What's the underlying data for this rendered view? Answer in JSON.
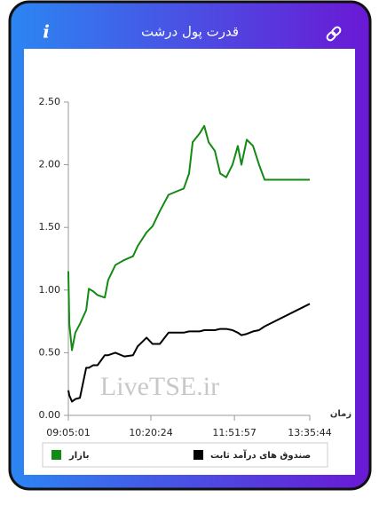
{
  "header": {
    "title": "قدرت پول درشت",
    "info": "i"
  },
  "chart_data": {
    "type": "line",
    "x_label": "زمان",
    "watermark": "LiveTSE.ir",
    "x": [
      0,
      0.4,
      1.5,
      2.9,
      4.8,
      7.4,
      8.5,
      10.3,
      12.1,
      15.1,
      16.5,
      19.5,
      23.2,
      26.8,
      28.7,
      32.4,
      34.9,
      37.9,
      41.5,
      45.2,
      47.8,
      50,
      51.5,
      54.4,
      56.3,
      58.1,
      60.7,
      62.9,
      65.4,
      68,
      70.2,
      71.7,
      73.9,
      76.5,
      79,
      81.3,
      100
    ],
    "series": [
      {
        "name": "صندوق های درآمد ثابت",
        "color": "#000000",
        "values": [
          0.2,
          0.16,
          0.11,
          0.13,
          0.14,
          0.38,
          0.38,
          0.4,
          0.4,
          0.48,
          0.48,
          0.5,
          0.47,
          0.48,
          0.55,
          0.62,
          0.57,
          0.57,
          0.66,
          0.66,
          0.66,
          0.67,
          0.67,
          0.67,
          0.68,
          0.68,
          0.68,
          0.69,
          0.69,
          0.68,
          0.66,
          0.64,
          0.65,
          0.67,
          0.68,
          0.71,
          0.89
        ]
      },
      {
        "name": "بازار",
        "color": "#138a13",
        "values": [
          1.15,
          0.73,
          0.52,
          0.66,
          0.73,
          0.84,
          1.01,
          0.99,
          0.96,
          0.94,
          1.08,
          1.2,
          1.24,
          1.27,
          1.35,
          1.46,
          1.51,
          1.63,
          1.76,
          1.79,
          1.81,
          1.93,
          2.18,
          2.25,
          2.31,
          2.18,
          2.11,
          1.93,
          1.9,
          2.0,
          2.15,
          2.0,
          2.2,
          2.15,
          2.0,
          1.88,
          1.88
        ]
      }
    ],
    "xlim": [
      0,
      100
    ],
    "xticks": [
      {
        "value": 0,
        "label": "09:05:01"
      },
      {
        "value": 34.2,
        "label": "10:20:24"
      },
      {
        "value": 68.8,
        "label": "11:51:57"
      },
      {
        "value": 100,
        "label": "13:35:44"
      }
    ],
    "ylim": [
      0,
      2.5
    ],
    "yticks": [
      {
        "value": 0,
        "label": "0.00"
      },
      {
        "value": 0.5,
        "label": "0.50"
      },
      {
        "value": 1,
        "label": "1.00"
      },
      {
        "value": 1.5,
        "label": "1.50"
      },
      {
        "value": 2,
        "label": "2.00"
      },
      {
        "value": 2.5,
        "label": "2.50"
      }
    ],
    "grid": false
  }
}
